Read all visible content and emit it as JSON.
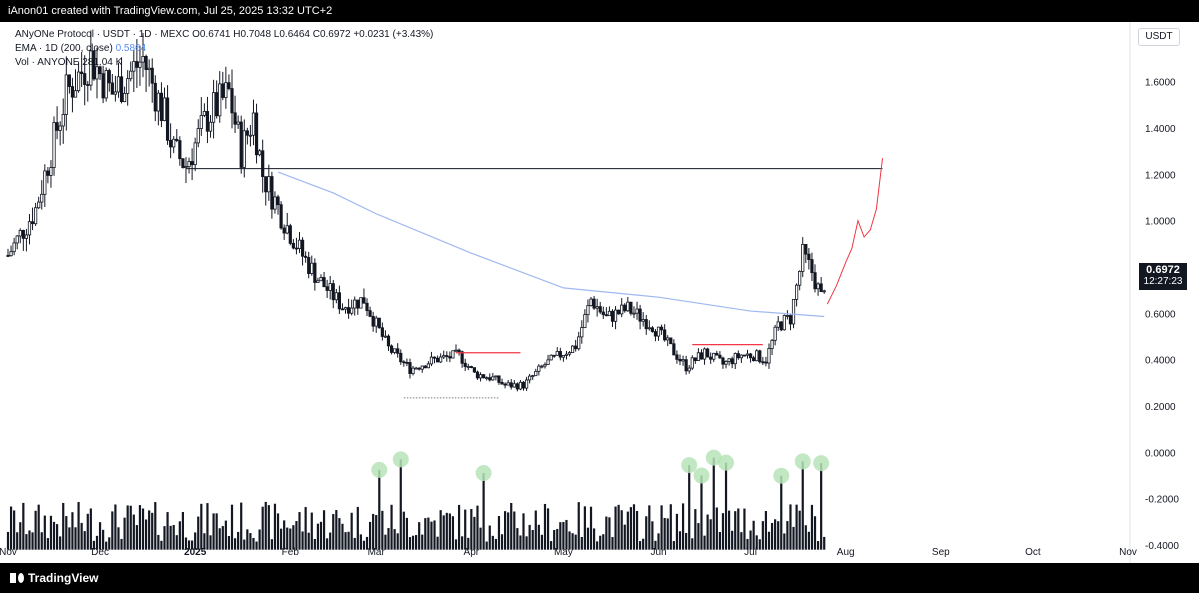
{
  "header": {
    "attribution": "iAnon01 created with TradingView.com, Jul 25, 2025 13:32 UTC+2"
  },
  "legend": {
    "symbol": "ANyONe Protocol · USDT · 1D · MEXC",
    "ohlc": "O0.6741 H0.7048 L0.6464 C0.6972 +0.0231 (+3.43%)",
    "ema_label": "EMA · 1D (200, close)",
    "ema_value": "0.5864",
    "vol_label": "Vol · ANYONE",
    "vol_value": "281.04 K"
  },
  "axis": {
    "currency": "USDT"
  },
  "last_price": {
    "price": "0.6972",
    "countdown": "12:27:23"
  },
  "footer": {
    "logo_text": "TradingView"
  },
  "colors": {
    "candle": "#131722",
    "ema": "#9fb8f0",
    "resistance": "#131722",
    "marker": "#f23645",
    "projection": "#f23645",
    "volume_highlight": "#b7e4b9",
    "grid": "#ffffff"
  },
  "chart_data": {
    "type": "candlestick",
    "y_axis_label": "USDT",
    "y_ticks": [
      "1.6000",
      "1.4000",
      "1.2000",
      "1.0000",
      "0.8000",
      "0.6000",
      "0.4000",
      "0.2000",
      "0.0000",
      "-0.2000",
      "-0.4000"
    ],
    "y_tick_values": [
      1.6,
      1.4,
      1.2,
      1.0,
      0.8,
      0.6,
      0.4,
      0.2,
      0.0,
      -0.2,
      -0.4
    ],
    "ylim": [
      -0.43,
      1.78
    ],
    "x_ticks": [
      "Nov",
      "Dec",
      "2025",
      "Feb",
      "Mar",
      "Apr",
      "May",
      "Jun",
      "Jul",
      "Aug",
      "Sep",
      "Oct",
      "Nov"
    ],
    "x_tick_dates": [
      "2024-11-01",
      "2024-12-01",
      "2025-01-01",
      "2025-02-01",
      "2025-03-01",
      "2025-04-01",
      "2025-05-01",
      "2025-06-01",
      "2025-07-01",
      "2025-08-01",
      "2025-09-01",
      "2025-10-01",
      "2025-11-01"
    ],
    "xlim_dates": [
      "2024-11-01",
      "2025-11-01"
    ],
    "price_path": [
      [
        "2024-11-01",
        0.85
      ],
      [
        "2024-11-10",
        1.05
      ],
      [
        "2024-11-20",
        1.55
      ],
      [
        "2024-11-28",
        1.7
      ],
      [
        "2024-12-05",
        1.55
      ],
      [
        "2024-12-15",
        1.7
      ],
      [
        "2024-12-22",
        1.45
      ],
      [
        "2024-12-25",
        1.3
      ],
      [
        "2024-12-29",
        1.24
      ],
      [
        "2025-01-05",
        1.45
      ],
      [
        "2025-01-12",
        1.55
      ],
      [
        "2025-01-16",
        1.3
      ],
      [
        "2025-01-20",
        1.45
      ],
      [
        "2025-01-23",
        1.2
      ],
      [
        "2025-01-30",
        1.0
      ],
      [
        "2025-02-05",
        0.85
      ],
      [
        "2025-02-10",
        0.75
      ],
      [
        "2025-02-18",
        0.63
      ],
      [
        "2025-02-25",
        0.66
      ],
      [
        "2025-03-01",
        0.55
      ],
      [
        "2025-03-05",
        0.45
      ],
      [
        "2025-03-12",
        0.36
      ],
      [
        "2025-03-20",
        0.4
      ],
      [
        "2025-03-28",
        0.42
      ],
      [
        "2025-04-02",
        0.34
      ],
      [
        "2025-04-08",
        0.32
      ],
      [
        "2025-04-12",
        0.29
      ],
      [
        "2025-04-18",
        0.29
      ],
      [
        "2025-04-25",
        0.38
      ],
      [
        "2025-05-01",
        0.43
      ],
      [
        "2025-05-05",
        0.46
      ],
      [
        "2025-05-10",
        0.66
      ],
      [
        "2025-05-15",
        0.58
      ],
      [
        "2025-05-22",
        0.62
      ],
      [
        "2025-05-30",
        0.55
      ],
      [
        "2025-06-05",
        0.45
      ],
      [
        "2025-06-10",
        0.37
      ],
      [
        "2025-06-16",
        0.43
      ],
      [
        "2025-06-22",
        0.38
      ],
      [
        "2025-06-28",
        0.42
      ],
      [
        "2025-07-02",
        0.42
      ],
      [
        "2025-07-06",
        0.4
      ],
      [
        "2025-07-10",
        0.55
      ],
      [
        "2025-07-14",
        0.58
      ],
      [
        "2025-07-18",
        0.85
      ],
      [
        "2025-07-21",
        0.78
      ],
      [
        "2025-07-24",
        0.67
      ],
      [
        "2025-07-25",
        0.6972
      ]
    ],
    "series": [
      {
        "name": "EMA · 1D (200, close)",
        "points": [
          [
            "2025-01-28",
            1.21
          ],
          [
            "2025-02-15",
            1.12
          ],
          [
            "2025-03-01",
            1.03
          ],
          [
            "2025-04-01",
            0.86
          ],
          [
            "2025-05-01",
            0.71
          ],
          [
            "2025-06-01",
            0.67
          ],
          [
            "2025-07-01",
            0.61
          ],
          [
            "2025-07-25",
            0.5864
          ]
        ]
      }
    ],
    "resistance_line": {
      "from": "2024-12-29",
      "to": "2025-08-13",
      "value": 1.225
    },
    "local_highs": [
      {
        "from": "2025-03-27",
        "to": "2025-04-17",
        "value": 0.43
      },
      {
        "from": "2025-06-12",
        "to": "2025-07-05",
        "value": 0.465
      }
    ],
    "support_range": {
      "from": "2025-03-10",
      "to": "2025-04-10",
      "value": 0.235
    },
    "projection": [
      [
        "2025-07-26",
        0.64
      ],
      [
        "2025-07-29",
        0.72
      ],
      [
        "2025-08-01",
        0.82
      ],
      [
        "2025-08-03",
        0.88
      ],
      [
        "2025-08-05",
        1.0
      ],
      [
        "2025-08-07",
        0.93
      ],
      [
        "2025-08-09",
        0.96
      ],
      [
        "2025-08-11",
        1.05
      ],
      [
        "2025-08-13",
        1.27
      ]
    ],
    "volume": {
      "unit": "relative",
      "highlighted_dates": [
        "2025-03-02",
        "2025-03-09",
        "2025-04-05",
        "2025-06-11",
        "2025-06-15",
        "2025-06-19",
        "2025-06-23",
        "2025-07-11",
        "2025-07-18",
        "2025-07-24"
      ]
    },
    "last_price": 0.6972
  }
}
